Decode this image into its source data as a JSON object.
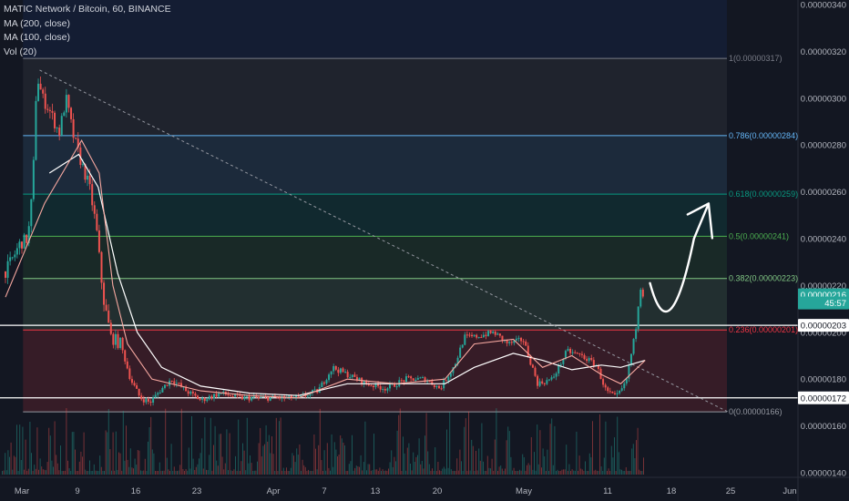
{
  "chart_data": {
    "type": "candlestick",
    "symbol_header": "MATIC Network / Bitcoin, 60, BINANCE",
    "indicators": [
      "MA (200, close)",
      "MA (100, close)",
      "Vol (20)"
    ],
    "x_labels": [
      "Mar",
      "9",
      "16",
      "23",
      "Apr",
      "7",
      "13",
      "20",
      "May",
      "11",
      "18",
      "25",
      "Jun"
    ],
    "y_ticks": [
      "0.00000140",
      "0.00000160",
      "0.00000180",
      "0.00000200",
      "0.00000220",
      "0.00000240",
      "0.00000260",
      "0.00000280",
      "0.00000300",
      "0.00000320",
      "0.00000340"
    ],
    "y_range": [
      1.38e-06,
      3.41e-06
    ],
    "fib_levels": [
      {
        "ratio": 0,
        "price": 1.66e-06,
        "label": "0(0.00000166)",
        "color": "#9598a1"
      },
      {
        "ratio": 0.236,
        "price": 2.01e-06,
        "label": "0.236(0.00000201)",
        "color": "#f23645"
      },
      {
        "ratio": 0.382,
        "price": 2.23e-06,
        "label": "0.382(0.00000223)",
        "color": "#81c784"
      },
      {
        "ratio": 0.5,
        "price": 2.41e-06,
        "label": "0.5(0.00000241)",
        "color": "#4caf50"
      },
      {
        "ratio": 0.618,
        "price": 2.59e-06,
        "label": "0.618(0.00000259)",
        "color": "#089981"
      },
      {
        "ratio": 0.786,
        "price": 2.84e-06,
        "label": "0.786(0.00000284)",
        "color": "#64b5f6"
      },
      {
        "ratio": 1,
        "price": 3.17e-06,
        "label": "1(0.00000317)",
        "color": "#787b86"
      }
    ],
    "horizontal_lines": [
      2.03e-06,
      1.72e-06
    ],
    "price_badges": [
      {
        "label": "0.00000216",
        "value": 2.16e-06,
        "bg": "#26a69a",
        "fg": "#ffffff"
      },
      {
        "label": "45:57",
        "value": 2.125e-06,
        "bg": "#26a69a",
        "fg": "#ffffff"
      },
      {
        "label": "0.00000203",
        "value": 2.03e-06,
        "bg": "#ffffff",
        "fg": "#131722"
      },
      {
        "label": "0.00000172",
        "value": 1.72e-06,
        "bg": "#ffffff",
        "fg": "#131722"
      }
    ],
    "price_path": [
      {
        "day": 0,
        "close": 2.26e-06
      },
      {
        "day": 0.8,
        "close": 2.32e-06
      },
      {
        "day": 1.5,
        "close": 2.38e-06
      },
      {
        "day": 2.3,
        "close": 2.4e-06
      },
      {
        "day": 2.8,
        "close": 2.62e-06
      },
      {
        "day": 3.2,
        "close": 3.1e-06
      },
      {
        "day": 3.8,
        "close": 3e-06
      },
      {
        "day": 4.5,
        "close": 2.95e-06
      },
      {
        "day": 5.5,
        "close": 2.85e-06
      },
      {
        "day": 6.2,
        "close": 3e-06
      },
      {
        "day": 7.0,
        "close": 2.83e-06
      },
      {
        "day": 7.8,
        "close": 2.72e-06
      },
      {
        "day": 8.6,
        "close": 2.62e-06
      },
      {
        "day": 9.3,
        "close": 2.45e-06
      },
      {
        "day": 10.0,
        "close": 2.15e-06
      },
      {
        "day": 10.8,
        "close": 1.98e-06
      },
      {
        "day": 11.8,
        "close": 1.95e-06
      },
      {
        "day": 12.8,
        "close": 1.8e-06
      },
      {
        "day": 13.8,
        "close": 1.72e-06
      },
      {
        "day": 14.8,
        "close": 1.7e-06
      },
      {
        "day": 15.8,
        "close": 1.75e-06
      },
      {
        "day": 17,
        "close": 1.8e-06
      },
      {
        "day": 18.5,
        "close": 1.75e-06
      },
      {
        "day": 20,
        "close": 1.71e-06
      },
      {
        "day": 22,
        "close": 1.74e-06
      },
      {
        "day": 24,
        "close": 1.72e-06
      },
      {
        "day": 26,
        "close": 1.72e-06
      },
      {
        "day": 28,
        "close": 1.72e-06
      },
      {
        "day": 30,
        "close": 1.72e-06
      },
      {
        "day": 32,
        "close": 1.75e-06
      },
      {
        "day": 33.5,
        "close": 1.85e-06
      },
      {
        "day": 35,
        "close": 1.82e-06
      },
      {
        "day": 37,
        "close": 1.78e-06
      },
      {
        "day": 39,
        "close": 1.76e-06
      },
      {
        "day": 41,
        "close": 1.8e-06
      },
      {
        "day": 43,
        "close": 1.8e-06
      },
      {
        "day": 44.5,
        "close": 1.76e-06
      },
      {
        "day": 46,
        "close": 1.86e-06
      },
      {
        "day": 47,
        "close": 1.98e-06
      },
      {
        "day": 48,
        "close": 1.98e-06
      },
      {
        "day": 50,
        "close": 2e-06
      },
      {
        "day": 51.5,
        "close": 1.95e-06
      },
      {
        "day": 53,
        "close": 1.97e-06
      },
      {
        "day": 54.5,
        "close": 1.78e-06
      },
      {
        "day": 56,
        "close": 1.8e-06
      },
      {
        "day": 57.5,
        "close": 1.92e-06
      },
      {
        "day": 59,
        "close": 1.9e-06
      },
      {
        "day": 60.5,
        "close": 1.86e-06
      },
      {
        "day": 61.5,
        "close": 1.75e-06
      },
      {
        "day": 62.5,
        "close": 1.72e-06
      },
      {
        "day": 63.5,
        "close": 1.78e-06
      },
      {
        "day": 64.5,
        "close": 2e-06
      },
      {
        "day": 65,
        "close": 2.2e-06
      },
      {
        "day": 65.3,
        "close": 2.16e-06
      }
    ],
    "ma200_path": [
      {
        "day": 4.5,
        "value": 2.68e-06
      },
      {
        "day": 7.5,
        "value": 2.76e-06
      },
      {
        "day": 9.5,
        "value": 2.62e-06
      },
      {
        "day": 11.5,
        "value": 2.25e-06
      },
      {
        "day": 13.5,
        "value": 2e-06
      },
      {
        "day": 16,
        "value": 1.85e-06
      },
      {
        "day": 20,
        "value": 1.77e-06
      },
      {
        "day": 25,
        "value": 1.74e-06
      },
      {
        "day": 30,
        "value": 1.73e-06
      },
      {
        "day": 35,
        "value": 1.78e-06
      },
      {
        "day": 40,
        "value": 1.78e-06
      },
      {
        "day": 45,
        "value": 1.78e-06
      },
      {
        "day": 48,
        "value": 1.85e-06
      },
      {
        "day": 52,
        "value": 1.91e-06
      },
      {
        "day": 55,
        "value": 1.88e-06
      },
      {
        "day": 58,
        "value": 1.84e-06
      },
      {
        "day": 61,
        "value": 1.86e-06
      },
      {
        "day": 63,
        "value": 1.85e-06
      },
      {
        "day": 65.5,
        "value": 1.88e-06
      }
    ],
    "ma100_path": [
      {
        "day": 0,
        "value": 2.15e-06
      },
      {
        "day": 4,
        "value": 2.55e-06
      },
      {
        "day": 7.8,
        "value": 2.82e-06
      },
      {
        "day": 9.6,
        "value": 2.68e-06
      },
      {
        "day": 11,
        "value": 2.2e-06
      },
      {
        "day": 12.5,
        "value": 1.95e-06
      },
      {
        "day": 15,
        "value": 1.8e-06
      },
      {
        "day": 20,
        "value": 1.75e-06
      },
      {
        "day": 25,
        "value": 1.73e-06
      },
      {
        "day": 30,
        "value": 1.72e-06
      },
      {
        "day": 35,
        "value": 1.8e-06
      },
      {
        "day": 40,
        "value": 1.78e-06
      },
      {
        "day": 45,
        "value": 1.8e-06
      },
      {
        "day": 48,
        "value": 1.95e-06
      },
      {
        "day": 52,
        "value": 1.97e-06
      },
      {
        "day": 55,
        "value": 1.85e-06
      },
      {
        "day": 58,
        "value": 1.9e-06
      },
      {
        "day": 61,
        "value": 1.82e-06
      },
      {
        "day": 63,
        "value": 1.78e-06
      },
      {
        "day": 65.5,
        "value": 1.88e-06
      }
    ],
    "trendline": [
      {
        "day": 3.5,
        "price": 3.12e-06
      },
      {
        "day": 74,
        "price": 1.66e-06
      }
    ],
    "projection_arrow": [
      {
        "day": 66,
        "price": 2.21e-06
      },
      {
        "day": 68,
        "price": 2.05e-06
      },
      {
        "day": 70.5,
        "price": 2.4e-06
      },
      {
        "day": 72,
        "price": 2.55e-06
      }
    ],
    "colors": {
      "up": "#26a69a",
      "down": "#ef5350",
      "background": "#131722",
      "axis_text": "#b2b5be"
    }
  }
}
